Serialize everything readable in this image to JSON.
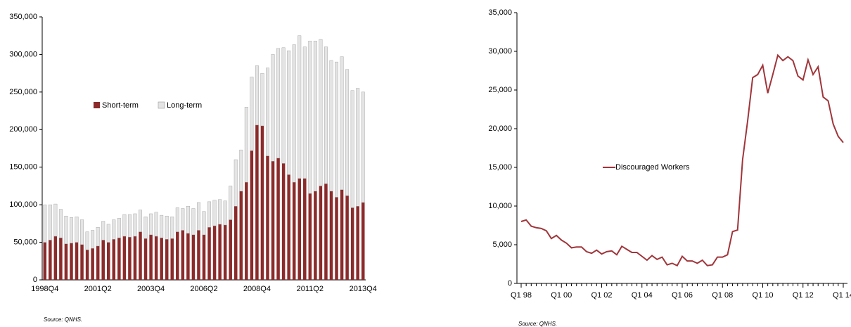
{
  "chart_data": [
    {
      "type": "bar",
      "stacked": true,
      "source": "Source: QNHS.",
      "categories": [
        "1998Q4",
        null,
        null,
        null,
        null,
        null,
        null,
        null,
        null,
        null,
        "2001Q2",
        null,
        null,
        null,
        null,
        null,
        null,
        null,
        null,
        null,
        "2003Q4",
        null,
        null,
        null,
        null,
        null,
        null,
        null,
        null,
        null,
        "2006Q2",
        null,
        null,
        null,
        null,
        null,
        null,
        null,
        null,
        null,
        "2008Q4",
        null,
        null,
        null,
        null,
        null,
        null,
        null,
        null,
        null,
        "2011Q2",
        null,
        null,
        null,
        null,
        null,
        null,
        null,
        null,
        null,
        "2013Q4"
      ],
      "series": [
        {
          "name": "Short-term",
          "color": "#8b2b2b",
          "values": [
            50000,
            53000,
            58000,
            56000,
            48000,
            49000,
            50000,
            47000,
            40000,
            42000,
            45000,
            53000,
            50000,
            54000,
            56000,
            58000,
            57000,
            58000,
            64000,
            55000,
            60000,
            58000,
            56000,
            54000,
            55000,
            64000,
            66000,
            62000,
            60000,
            66000,
            60000,
            70000,
            72000,
            74000,
            73000,
            80000,
            98000,
            118000,
            130000,
            172000,
            206000,
            205000,
            165000,
            158000,
            162000,
            155000,
            140000,
            130000,
            135000,
            135000,
            115000,
            118000,
            125000,
            128000,
            118000,
            110000,
            120000,
            112000,
            96000,
            98000,
            103000
          ]
        },
        {
          "name": "Long-term",
          "color": "#e4e4e4",
          "values": [
            50000,
            47000,
            43000,
            38000,
            37000,
            34000,
            34000,
            33000,
            24000,
            24000,
            25000,
            25000,
            24000,
            26000,
            26000,
            29000,
            30000,
            30000,
            29000,
            29000,
            28000,
            32000,
            30000,
            31000,
            29000,
            32000,
            29000,
            36000,
            35000,
            37000,
            31000,
            34000,
            34000,
            33000,
            32000,
            45000,
            62000,
            55000,
            100000,
            98000,
            79000,
            70000,
            117000,
            142000,
            146000,
            154000,
            165000,
            183000,
            190000,
            175000,
            203000,
            200000,
            195000,
            182000,
            174000,
            180000,
            177000,
            168000,
            156000,
            157000,
            147000
          ]
        }
      ],
      "ylim": [
        0,
        350000
      ],
      "yticks": [
        0,
        {
          "value": 50000,
          "label": "50,000"
        },
        {
          "value": 100000,
          "label": "100,000"
        },
        {
          "value": 150000,
          "label": "150,000"
        },
        {
          "value": 200000,
          "label": "200,000"
        },
        {
          "value": 250000,
          "label": "250,000"
        },
        {
          "value": 300000,
          "label": "300,000"
        },
        {
          "value": 350000,
          "label": "350,000"
        }
      ]
    },
    {
      "type": "line",
      "source": "Source: QNHS.",
      "categories": [
        "Q1 98",
        null,
        null,
        null,
        null,
        null,
        null,
        null,
        "Q1 00",
        null,
        null,
        null,
        null,
        null,
        null,
        null,
        "Q1 02",
        null,
        null,
        null,
        null,
        null,
        null,
        null,
        "Q1 04",
        null,
        null,
        null,
        null,
        null,
        null,
        null,
        "Q1 06",
        null,
        null,
        null,
        null,
        null,
        null,
        null,
        "Q1 08",
        null,
        null,
        null,
        null,
        null,
        null,
        null,
        "Q1 10",
        null,
        null,
        null,
        null,
        null,
        null,
        null,
        "Q1 12",
        null,
        null,
        null,
        null,
        null,
        null,
        null,
        "Q1 14"
      ],
      "series": [
        {
          "name": "Discouraged Workers",
          "color": "#a0353a",
          "values": [
            8000,
            8200,
            7400,
            7200,
            7100,
            6800,
            5800,
            6200,
            5600,
            5200,
            4600,
            4700,
            4700,
            4100,
            3900,
            4300,
            3800,
            4100,
            4200,
            3700,
            4800,
            4400,
            4000,
            4000,
            3500,
            3000,
            3600,
            3100,
            3400,
            2400,
            2600,
            2300,
            3500,
            2900,
            2900,
            2600,
            3000,
            2300,
            2400,
            3400,
            3400,
            3700,
            6700,
            6900,
            16000,
            21000,
            26600,
            27000,
            28200,
            24600,
            27000,
            29500,
            28800,
            29300,
            28800,
            26800,
            26300,
            28900,
            27000,
            28000,
            24100,
            23600,
            20600,
            19000,
            18200
          ]
        }
      ],
      "ylim": [
        0,
        35000
      ],
      "yticks": [
        0,
        {
          "value": 5000,
          "label": "5,000"
        },
        {
          "value": 10000,
          "label": "10,000"
        },
        {
          "value": 15000,
          "label": "15,000"
        },
        {
          "value": 20000,
          "label": "20,000"
        },
        {
          "value": 25000,
          "label": "25,000"
        },
        {
          "value": 30000,
          "label": "30,000"
        },
        {
          "value": 35000,
          "label": "35,000"
        }
      ]
    }
  ]
}
